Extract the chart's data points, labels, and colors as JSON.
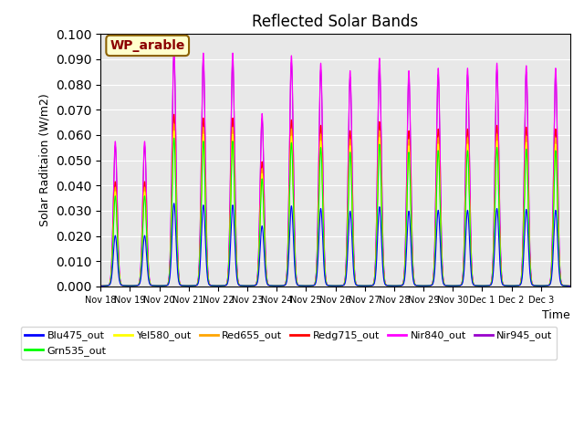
{
  "title": "Reflected Solar Bands",
  "xlabel": "Time",
  "ylabel": "Solar Raditaion (W/m2)",
  "annotation_label": "WP_arable",
  "ylim": [
    0,
    0.1
  ],
  "yticks": [
    0.0,
    0.01,
    0.02,
    0.03,
    0.04,
    0.05,
    0.06,
    0.07,
    0.08,
    0.09,
    0.1
  ],
  "xtick_labels": [
    "Nov 18",
    "Nov 19",
    "Nov 20",
    "Nov 21",
    "Nov 22",
    "Nov 23",
    "Nov 24",
    "Nov 25",
    "Nov 26",
    "Nov 27",
    "Nov 28",
    "Nov 29",
    "Nov 30",
    "Dec 1",
    "Dec 2",
    "Dec 3"
  ],
  "series": [
    {
      "label": "Blu475_out",
      "color": "#0000FF",
      "scale": 0.345
    },
    {
      "label": "Grn535_out",
      "color": "#00FF00",
      "scale": 0.62
    },
    {
      "label": "Yel580_out",
      "color": "#FFFF00",
      "scale": 0.65
    },
    {
      "label": "Red655_out",
      "color": "#FFA500",
      "scale": 0.68
    },
    {
      "label": "Redg715_out",
      "color": "#FF0000",
      "scale": 0.72
    },
    {
      "label": "Nir840_out",
      "color": "#FF00FF",
      "scale": 1.0
    },
    {
      "label": "Nir945_out",
      "color": "#9900CC",
      "scale": 0.97
    }
  ],
  "day_peaks_nir840": [
    0.057,
    0.057,
    0.094,
    0.092,
    0.092,
    0.068,
    0.091,
    0.088,
    0.085,
    0.09,
    0.085,
    0.086,
    0.086,
    0.088,
    0.087,
    0.086
  ],
  "background_color": "#E8E8E8",
  "legend_fontsize": 8,
  "title_fontsize": 12,
  "linewidth": 0.8
}
